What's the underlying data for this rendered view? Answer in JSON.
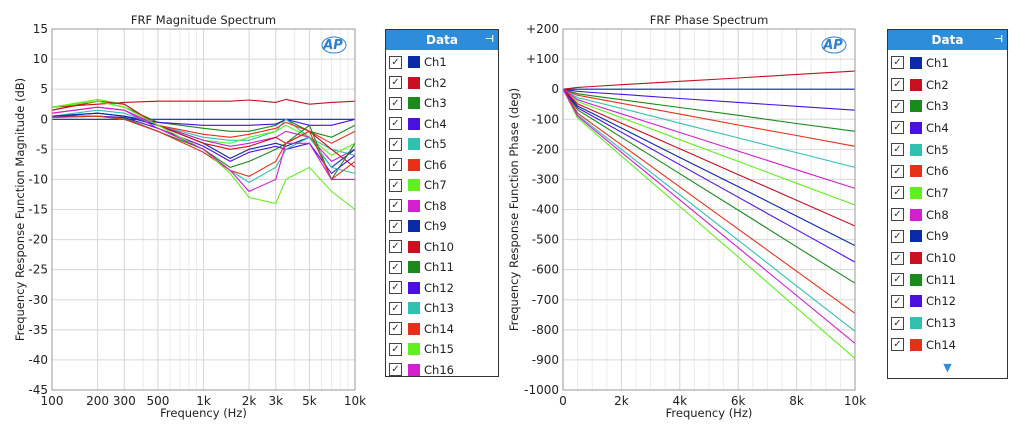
{
  "chart_data": [
    {
      "type": "line",
      "title": "FRF Magnitude Spectrum",
      "xlabel": "Frequency (Hz)",
      "ylabel": "Frequency Response Function Magnitude (dB)",
      "xscale": "log",
      "xlim": [
        100,
        10000
      ],
      "ylim": [
        -45,
        15
      ],
      "grid": true,
      "legend": "right",
      "xticks": [
        100,
        200,
        300,
        500,
        1000,
        2000,
        3000,
        5000,
        10000
      ],
      "xtick_labels": [
        "100",
        "200",
        "300",
        "500",
        "1k",
        "2k",
        "3k",
        "5k",
        "10k"
      ],
      "yticks": [
        15,
        10,
        5,
        0,
        -5,
        -10,
        -15,
        -20,
        -25,
        -30,
        -35,
        -40,
        -45
      ],
      "x": [
        100,
        200,
        300,
        500,
        1000,
        1500,
        2000,
        3000,
        3500,
        5000,
        7000,
        10000
      ],
      "series": [
        {
          "name": "Ch1",
          "color": "#0a2aa8",
          "values": [
            0,
            0,
            0,
            0,
            0,
            0,
            0,
            0,
            0,
            0,
            0,
            0
          ]
        },
        {
          "name": "Ch2",
          "color": "#c81020",
          "values": [
            2,
            2.5,
            2.8,
            3,
            3,
            3,
            3.2,
            2.8,
            3.3,
            2.5,
            2.8,
            3
          ]
        },
        {
          "name": "Ch3",
          "color": "#1a8a1a",
          "values": [
            2,
            3,
            2,
            -0.5,
            -1.5,
            -2,
            -2,
            -1,
            0,
            -2,
            -3,
            -1
          ]
        },
        {
          "name": "Ch4",
          "color": "#4a10e0",
          "values": [
            0.5,
            1,
            0.5,
            -0.5,
            -1,
            -1,
            -1,
            -0.8,
            0,
            -1,
            -1,
            0
          ]
        },
        {
          "name": "Ch5",
          "color": "#30c0b0",
          "values": [
            0.5,
            1.5,
            1,
            -1,
            -3,
            -3.5,
            -3.5,
            -2,
            0,
            -3,
            -5,
            -6
          ]
        },
        {
          "name": "Ch6",
          "color": "#e83018",
          "values": [
            1.5,
            3,
            2.5,
            -1,
            -2.5,
            -3,
            -2.5,
            -1.5,
            -0.5,
            -2,
            -4,
            -2
          ]
        },
        {
          "name": "Ch7",
          "color": "#60f020",
          "values": [
            2,
            3.3,
            2.5,
            -1,
            -3.5,
            -4,
            -3,
            -2,
            -1,
            -3,
            -6,
            -4
          ]
        },
        {
          "name": "Ch8",
          "color": "#d020d0",
          "values": [
            1,
            2,
            1.5,
            -1,
            -3.5,
            -4.5,
            -4,
            -3,
            -2,
            -3,
            -7,
            -5
          ]
        },
        {
          "name": "Ch9",
          "color": "#0a2aa8",
          "values": [
            0.5,
            1,
            0.5,
            -1,
            -4,
            -6.5,
            -5,
            -4,
            -4.5,
            -3,
            -8,
            -5
          ]
        },
        {
          "name": "Ch10",
          "color": "#c81020",
          "values": [
            1.5,
            3,
            2.5,
            -1,
            -4,
            -5,
            -4.5,
            -3,
            -4,
            -2,
            -5,
            -8
          ]
        },
        {
          "name": "Ch11",
          "color": "#1a8a1a",
          "values": [
            0.5,
            0.5,
            0.2,
            -2,
            -5,
            -8,
            -7,
            -5,
            -4,
            -1,
            -10,
            -4
          ]
        },
        {
          "name": "Ch12",
          "color": "#4a10e0",
          "values": [
            0.5,
            0.5,
            0.3,
            -1.5,
            -4.5,
            -7,
            -5.5,
            -4.5,
            -5,
            -4,
            -9,
            -6
          ]
        },
        {
          "name": "Ch13",
          "color": "#30c0b0",
          "values": [
            0.3,
            0.5,
            0,
            -2,
            -5.5,
            -8.5,
            -10.5,
            -8,
            -5,
            -3,
            -8,
            -9
          ]
        },
        {
          "name": "Ch14",
          "color": "#e83018",
          "values": [
            0.3,
            0.5,
            0,
            -2,
            -5.5,
            -8.5,
            -9.5,
            -7,
            -4,
            -2,
            -10,
            -7
          ]
        },
        {
          "name": "Ch15",
          "color": "#60f020",
          "values": [
            2,
            3,
            2,
            -1,
            -5,
            -9,
            -13,
            -14,
            -10,
            -8,
            -12,
            -15
          ]
        },
        {
          "name": "Ch16",
          "color": "#d020d0",
          "values": [
            1,
            2,
            1.5,
            -1.5,
            -5,
            -8.5,
            -12,
            -10,
            -4,
            -4,
            -10,
            -10
          ]
        }
      ]
    },
    {
      "type": "line",
      "title": "FRF Phase Spectrum",
      "xlabel": "Frequency (Hz)",
      "ylabel": "Frequency Response Function Phase (deg)",
      "xscale": "linear",
      "xlim": [
        0,
        10000
      ],
      "ylim": [
        -1000,
        200
      ],
      "grid": true,
      "legend": "right",
      "xticks": [
        0,
        2000,
        4000,
        6000,
        8000,
        10000
      ],
      "xtick_labels": [
        "0",
        "2k",
        "4k",
        "6k",
        "8k",
        "10k"
      ],
      "yticks": [
        200,
        100,
        0,
        -100,
        -200,
        -300,
        -400,
        -500,
        -600,
        -700,
        -800,
        -900,
        -1000
      ],
      "ytick_labels": [
        "+200",
        "+100",
        "0",
        "-100",
        "-200",
        "-300",
        "-400",
        "-500",
        "-600",
        "-700",
        "-800",
        "-900",
        "-1000"
      ],
      "x": [
        0,
        500,
        1000,
        2000,
        4000,
        6000,
        8000,
        10000
      ],
      "series": [
        {
          "name": "Ch1",
          "color": "#0a2aa8",
          "values": [
            0,
            0,
            0,
            0,
            0,
            0,
            0,
            0
          ]
        },
        {
          "name": "Ch2",
          "color": "#c81020",
          "values": [
            0,
            6,
            9,
            15,
            26,
            37,
            49,
            60
          ]
        },
        {
          "name": "Ch3",
          "color": "#1a8a1a",
          "values": [
            0,
            -15,
            -22,
            -35,
            -61,
            -87,
            -114,
            -140
          ]
        },
        {
          "name": "Ch4",
          "color": "#4a10e0",
          "values": [
            0,
            -7,
            -11,
            -17,
            -31,
            -44,
            -57,
            -70
          ]
        },
        {
          "name": "Ch5",
          "color": "#30c0b0",
          "values": [
            0,
            -28,
            -40,
            -64,
            -113,
            -162,
            -211,
            -260
          ]
        },
        {
          "name": "Ch6",
          "color": "#e83018",
          "values": [
            0,
            -20,
            -29,
            -47,
            -83,
            -119,
            -154,
            -190
          ]
        },
        {
          "name": "Ch7",
          "color": "#60f020",
          "values": [
            0,
            -41,
            -59,
            -95,
            -168,
            -240,
            -313,
            -385
          ]
        },
        {
          "name": "Ch8",
          "color": "#d020d0",
          "values": [
            0,
            -35,
            -51,
            -82,
            -144,
            -206,
            -268,
            -330
          ]
        },
        {
          "name": "Ch9",
          "color": "#0a2aa8",
          "values": [
            0,
            -56,
            -80,
            -129,
            -227,
            -324,
            -422,
            -520
          ]
        },
        {
          "name": "Ch10",
          "color": "#c81020",
          "values": [
            0,
            -49,
            -70,
            -113,
            -198,
            -284,
            -369,
            -455
          ]
        },
        {
          "name": "Ch11",
          "color": "#1a8a1a",
          "values": [
            0,
            -69,
            -99,
            -160,
            -281,
            -402,
            -524,
            -645
          ]
        },
        {
          "name": "Ch12",
          "color": "#4a10e0",
          "values": [
            0,
            -62,
            -89,
            -143,
            -251,
            -359,
            -467,
            -575
          ]
        },
        {
          "name": "Ch13",
          "color": "#30c0b0",
          "values": [
            0,
            -86,
            -124,
            -200,
            -351,
            -502,
            -654,
            -805
          ]
        },
        {
          "name": "Ch14",
          "color": "#e83018",
          "values": [
            0,
            -80,
            -115,
            -185,
            -325,
            -465,
            -605,
            -745
          ]
        },
        {
          "name": "Ch15",
          "color": "#60f020",
          "values": [
            0,
            -96,
            -138,
            -222,
            -390,
            -558,
            -727,
            -895
          ]
        },
        {
          "name": "Ch16",
          "color": "#d020d0",
          "values": [
            0,
            -90,
            -130,
            -210,
            -368,
            -527,
            -686,
            -845
          ]
        }
      ]
    }
  ],
  "legend_left": {
    "title": "Data",
    "items": [
      "Ch1",
      "Ch2",
      "Ch3",
      "Ch4",
      "Ch5",
      "Ch6",
      "Ch7",
      "Ch8",
      "Ch9",
      "Ch10",
      "Ch11",
      "Ch12",
      "Ch13",
      "Ch14",
      "Ch15",
      "Ch16"
    ]
  },
  "legend_right": {
    "title": "Data",
    "items": [
      "Ch1",
      "Ch2",
      "Ch3",
      "Ch4",
      "Ch5",
      "Ch6",
      "Ch7",
      "Ch8",
      "Ch9",
      "Ch10",
      "Ch11",
      "Ch12",
      "Ch13",
      "Ch14"
    ]
  },
  "logo": "AP",
  "icons": {
    "pin": "pin-icon",
    "scroll": "scroll-down-arrow-icon"
  }
}
